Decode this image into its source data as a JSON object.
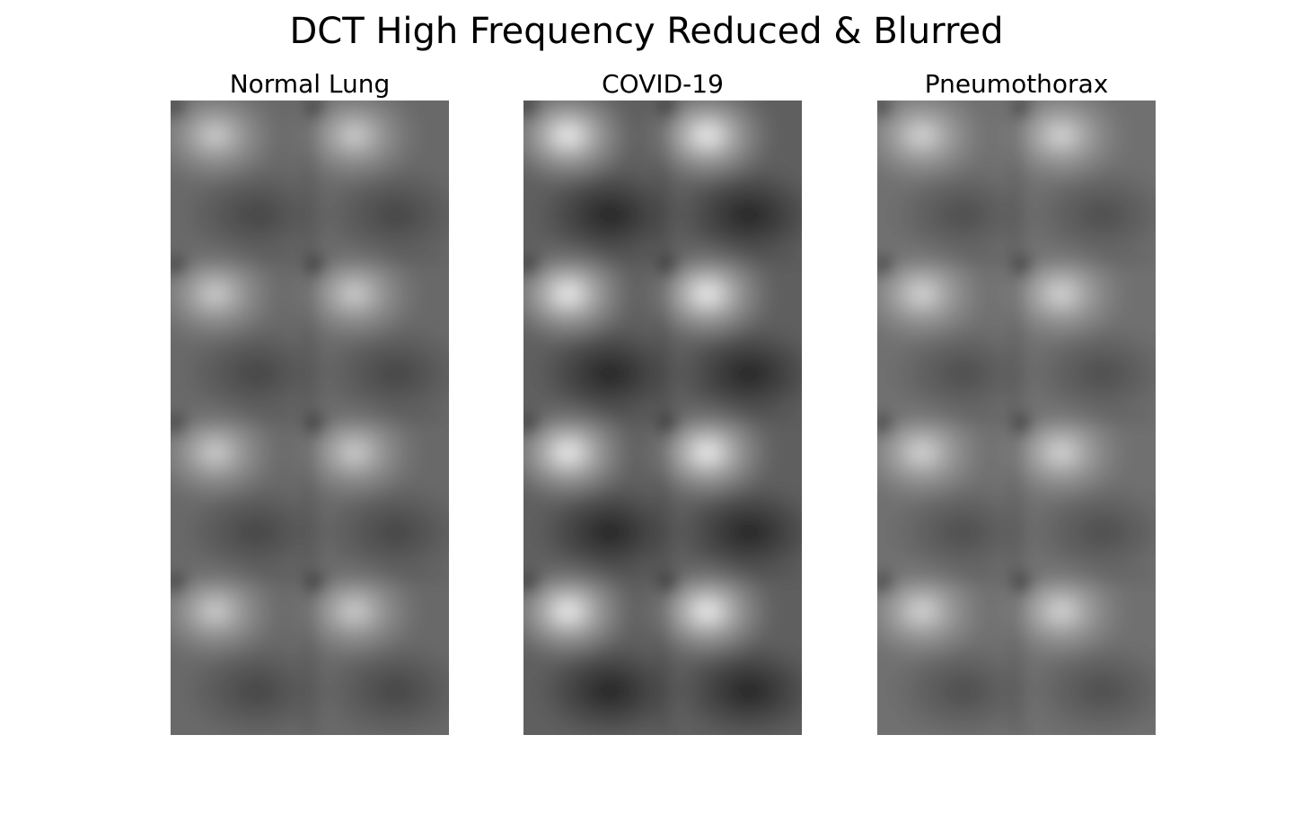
{
  "figure": {
    "title": "DCT High Frequency Reduced & Blurred"
  },
  "panels": [
    {
      "title": "Normal Lung",
      "grid": {
        "rows": 4,
        "cols": 2
      },
      "highlight_strength": 0.75,
      "shadow_strength": 0.45,
      "base_gray": 105
    },
    {
      "title": "COVID-19",
      "grid": {
        "rows": 4,
        "cols": 2
      },
      "highlight_strength": 1.0,
      "shadow_strength": 0.85,
      "base_gray": 95
    },
    {
      "title": "Pneumothorax",
      "grid": {
        "rows": 4,
        "cols": 2
      },
      "highlight_strength": 0.8,
      "shadow_strength": 0.4,
      "base_gray": 112
    }
  ]
}
